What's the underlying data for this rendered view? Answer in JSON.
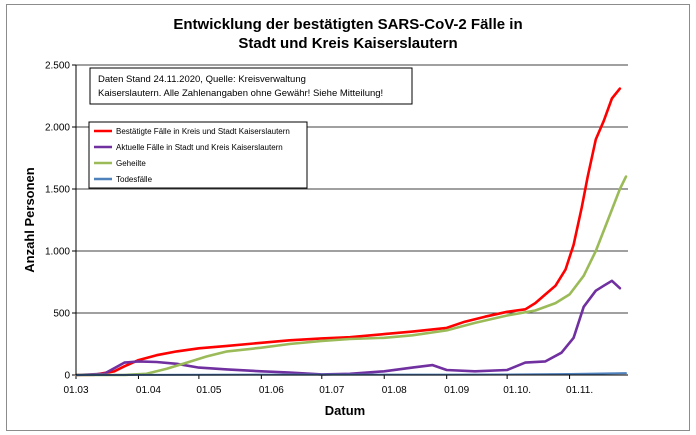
{
  "chart_data": {
    "type": "line",
    "title_lines": [
      "Entwicklung der bestätigten SARS-CoV-2 Fälle in",
      "Stadt und Kreis Kaiserslautern"
    ],
    "xlabel": "Datum",
    "ylabel": "Anzahl Personen",
    "ylim": [
      0,
      2500
    ],
    "yticks": [
      0,
      500,
      1000,
      1500,
      2000,
      2500
    ],
    "ytick_labels": [
      "0",
      "500",
      "1.000",
      "1.500",
      "2.000",
      "2.500"
    ],
    "xlim": [
      "2020-03-01",
      "2020-11-30"
    ],
    "xticks": [
      "2020-03-01",
      "2020-04-01",
      "2020-05-01",
      "2020-06-01",
      "2020-07-01",
      "2020-08-01",
      "2020-09-01",
      "2020-10-01",
      "2020-11-01"
    ],
    "xtick_labels": [
      "01.03",
      "01.04",
      "01.05",
      "01.06",
      "01.07",
      "01.08",
      "01.09",
      "01.10.",
      "01.11."
    ],
    "grid": "horizontal",
    "note_lines": [
      "Daten Stand 24.11.2020, Quelle: Kreisverwaltung",
      "Kaiserslautern. Alle Zahlenangaben ohne Gewähr! Siehe Mitteilung!"
    ],
    "legend_position": "top-left",
    "series": [
      {
        "name": "Bestätigte Fälle in Kreis und Stadt Kaiserslautern",
        "color": "#ff0000",
        "points": [
          [
            "2020-03-01",
            0
          ],
          [
            "2020-03-10",
            2
          ],
          [
            "2020-03-20",
            30
          ],
          [
            "2020-03-25",
            70
          ],
          [
            "2020-04-01",
            120
          ],
          [
            "2020-04-10",
            160
          ],
          [
            "2020-04-20",
            190
          ],
          [
            "2020-05-01",
            215
          ],
          [
            "2020-05-15",
            235
          ],
          [
            "2020-06-01",
            260
          ],
          [
            "2020-06-15",
            280
          ],
          [
            "2020-07-01",
            295
          ],
          [
            "2020-07-15",
            305
          ],
          [
            "2020-08-01",
            330
          ],
          [
            "2020-08-15",
            350
          ],
          [
            "2020-09-01",
            380
          ],
          [
            "2020-09-10",
            430
          ],
          [
            "2020-09-20",
            470
          ],
          [
            "2020-10-01",
            510
          ],
          [
            "2020-10-10",
            530
          ],
          [
            "2020-10-15",
            580
          ],
          [
            "2020-10-20",
            650
          ],
          [
            "2020-10-25",
            720
          ],
          [
            "2020-10-30",
            850
          ],
          [
            "2020-11-03",
            1050
          ],
          [
            "2020-11-07",
            1350
          ],
          [
            "2020-11-10",
            1600
          ],
          [
            "2020-11-14",
            1900
          ],
          [
            "2020-11-18",
            2050
          ],
          [
            "2020-11-22",
            2230
          ],
          [
            "2020-11-26",
            2310
          ]
        ]
      },
      {
        "name": "Aktuelle Fälle in Stadt und Kreis Kaiserslautern",
        "color": "#7030a0",
        "points": [
          [
            "2020-03-01",
            0
          ],
          [
            "2020-03-15",
            10
          ],
          [
            "2020-03-25",
            100
          ],
          [
            "2020-04-01",
            110
          ],
          [
            "2020-04-10",
            105
          ],
          [
            "2020-04-20",
            90
          ],
          [
            "2020-05-01",
            60
          ],
          [
            "2020-05-15",
            45
          ],
          [
            "2020-06-01",
            30
          ],
          [
            "2020-06-15",
            20
          ],
          [
            "2020-07-01",
            5
          ],
          [
            "2020-07-15",
            10
          ],
          [
            "2020-08-01",
            30
          ],
          [
            "2020-08-15",
            60
          ],
          [
            "2020-08-25",
            80
          ],
          [
            "2020-09-01",
            40
          ],
          [
            "2020-09-15",
            30
          ],
          [
            "2020-10-01",
            40
          ],
          [
            "2020-10-10",
            100
          ],
          [
            "2020-10-20",
            110
          ],
          [
            "2020-10-28",
            180
          ],
          [
            "2020-11-03",
            300
          ],
          [
            "2020-11-08",
            550
          ],
          [
            "2020-11-14",
            680
          ],
          [
            "2020-11-18",
            720
          ],
          [
            "2020-11-22",
            760
          ],
          [
            "2020-11-26",
            700
          ]
        ]
      },
      {
        "name": "Geheilte",
        "color": "#9bbb59",
        "points": [
          [
            "2020-03-01",
            0
          ],
          [
            "2020-03-25",
            0
          ],
          [
            "2020-04-05",
            10
          ],
          [
            "2020-04-15",
            50
          ],
          [
            "2020-04-25",
            100
          ],
          [
            "2020-05-05",
            150
          ],
          [
            "2020-05-15",
            190
          ],
          [
            "2020-06-01",
            220
          ],
          [
            "2020-06-15",
            250
          ],
          [
            "2020-07-01",
            275
          ],
          [
            "2020-07-15",
            290
          ],
          [
            "2020-08-01",
            300
          ],
          [
            "2020-08-15",
            320
          ],
          [
            "2020-09-01",
            360
          ],
          [
            "2020-09-15",
            420
          ],
          [
            "2020-10-01",
            480
          ],
          [
            "2020-10-15",
            520
          ],
          [
            "2020-10-25",
            580
          ],
          [
            "2020-11-01",
            650
          ],
          [
            "2020-11-08",
            800
          ],
          [
            "2020-11-14",
            1000
          ],
          [
            "2020-11-20",
            1250
          ],
          [
            "2020-11-26",
            1500
          ],
          [
            "2020-11-29",
            1600
          ]
        ]
      },
      {
        "name": "Todesfälle",
        "color": "#4f81bd",
        "points": [
          [
            "2020-03-01",
            0
          ],
          [
            "2020-04-01",
            1
          ],
          [
            "2020-05-01",
            2
          ],
          [
            "2020-06-01",
            3
          ],
          [
            "2020-07-01",
            3
          ],
          [
            "2020-08-01",
            3
          ],
          [
            "2020-09-01",
            3
          ],
          [
            "2020-10-01",
            4
          ],
          [
            "2020-11-01",
            8
          ],
          [
            "2020-11-29",
            15
          ]
        ]
      }
    ]
  }
}
